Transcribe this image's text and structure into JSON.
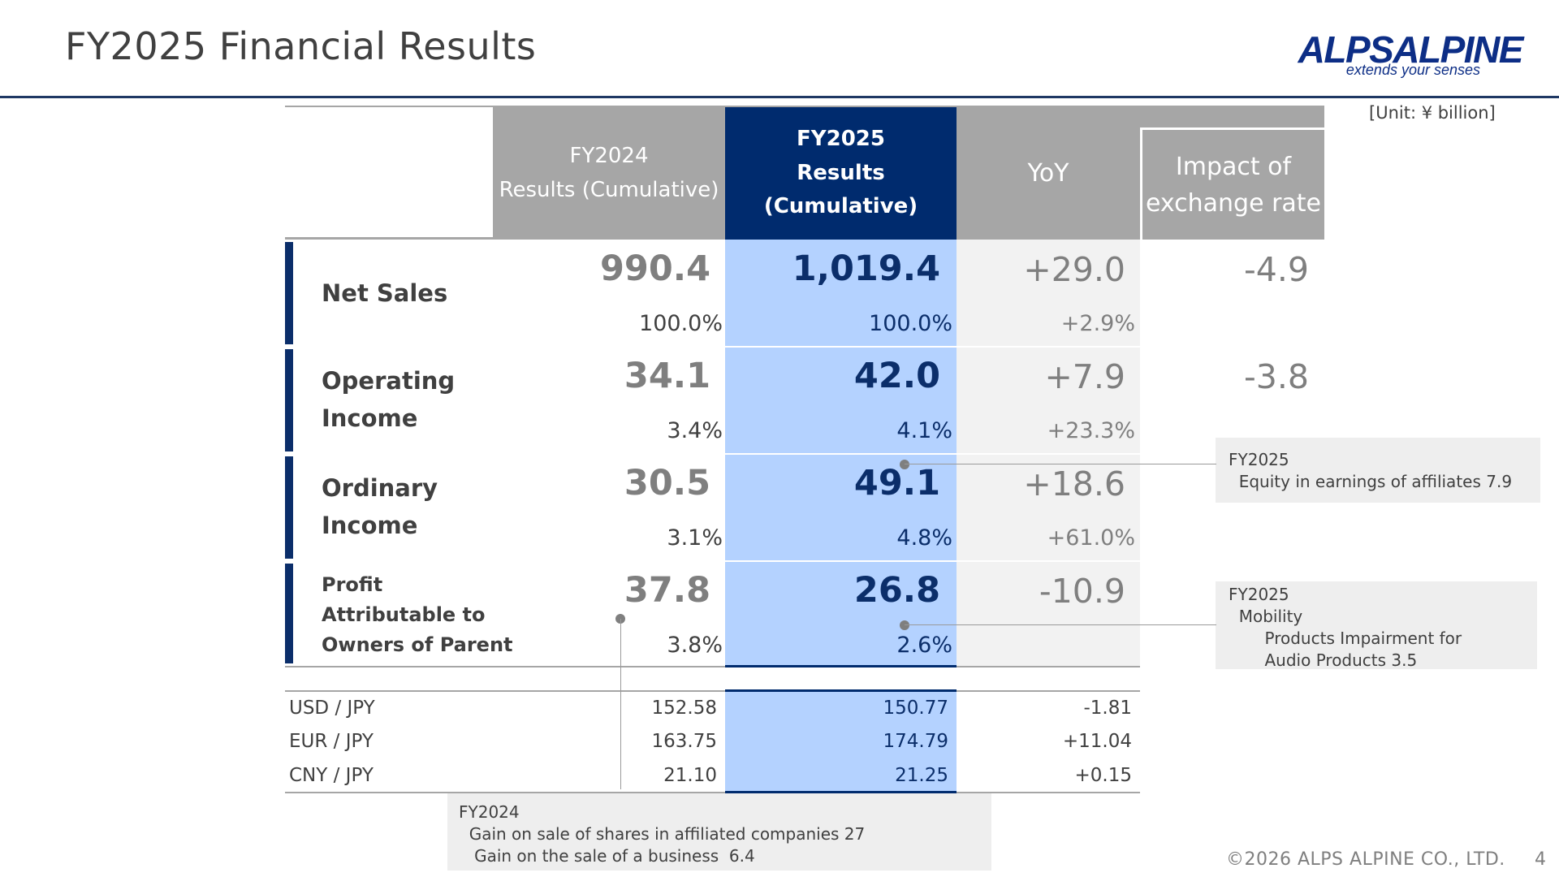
{
  "slide": {
    "title": "FY2025 Financial Results",
    "unit": "[Unit: ¥ billion]"
  },
  "logo": {
    "brand": "ALPSALPINE",
    "tagline": "extends your senses"
  },
  "table": {
    "headers": {
      "fy2024_line1": "FY2024",
      "fy2024_line2": "Results (Cumulative)",
      "fy2025_line1": "FY2025",
      "fy2025_line2": "Results (Cumulative)",
      "yoy": "YoY",
      "impact_line1": "Impact of",
      "impact_line2": "exchange rate"
    },
    "rows": [
      {
        "label": "Net Sales",
        "fy2024": "990.4",
        "fy2024_ratio": "100.0%",
        "fy2025": "1,019.4",
        "fy2025_ratio": "100.0%",
        "yoy": "+29.0",
        "yoy_pct": "+2.9%",
        "impact": "-4.9"
      },
      {
        "label_line1": "Operating",
        "label_line2": "Income",
        "fy2024": "34.1",
        "fy2024_ratio": "3.4%",
        "fy2025": "42.0",
        "fy2025_ratio": "4.1%",
        "yoy": "+7.9",
        "yoy_pct": "+23.3%",
        "impact": "-3.8"
      },
      {
        "label_line1": "Ordinary",
        "label_line2": "Income",
        "fy2024": "30.5",
        "fy2024_ratio": "3.1%",
        "fy2025": "49.1",
        "fy2025_ratio": "4.8%",
        "yoy": "+18.6",
        "yoy_pct": "+61.0%",
        "impact": ""
      },
      {
        "label_line1": "Profit",
        "label_line2": "Attributable to",
        "label_line3": "Owners of Parent",
        "fy2024": "37.8",
        "fy2024_ratio": "3.8%",
        "fy2025": "26.8",
        "fy2025_ratio": "2.6%",
        "yoy": "-10.9",
        "yoy_pct": "",
        "impact": ""
      }
    ],
    "fx_rates": [
      {
        "pair": "USD / JPY",
        "fy2024": "152.58",
        "fy2025": "150.77",
        "yoy": "-1.81"
      },
      {
        "pair": "EUR / JPY",
        "fy2024": "163.75",
        "fy2025": "174.79",
        "yoy": "+11.04"
      },
      {
        "pair": "CNY / JPY",
        "fy2024": "21.10",
        "fy2025": "21.25",
        "yoy": "+0.15"
      }
    ]
  },
  "notes": {
    "ordinary": {
      "line1": "FY2025",
      "line2": "  Equity in earnings of affiliates 7.9"
    },
    "profit": {
      "line1": "FY2025",
      "line2": "  Mobility",
      "line3": "       Products Impairment for",
      "line4": "       Audio Products 3.5"
    },
    "fy2024": {
      "line1": "FY2024",
      "line2": "  Gain on sale of shares in affiliated companies 27",
      "line3": "   Gain on the sale of a business  6.4"
    }
  },
  "footer": {
    "copyright": "©2026 ALPS ALPINE CO., LTD.",
    "page": "4"
  },
  "colors": {
    "navy": "#002b6e",
    "light_blue": "#b4d2ff",
    "gray_header": "#a6a6a6",
    "yoy_bg": "#f2f2f2"
  }
}
